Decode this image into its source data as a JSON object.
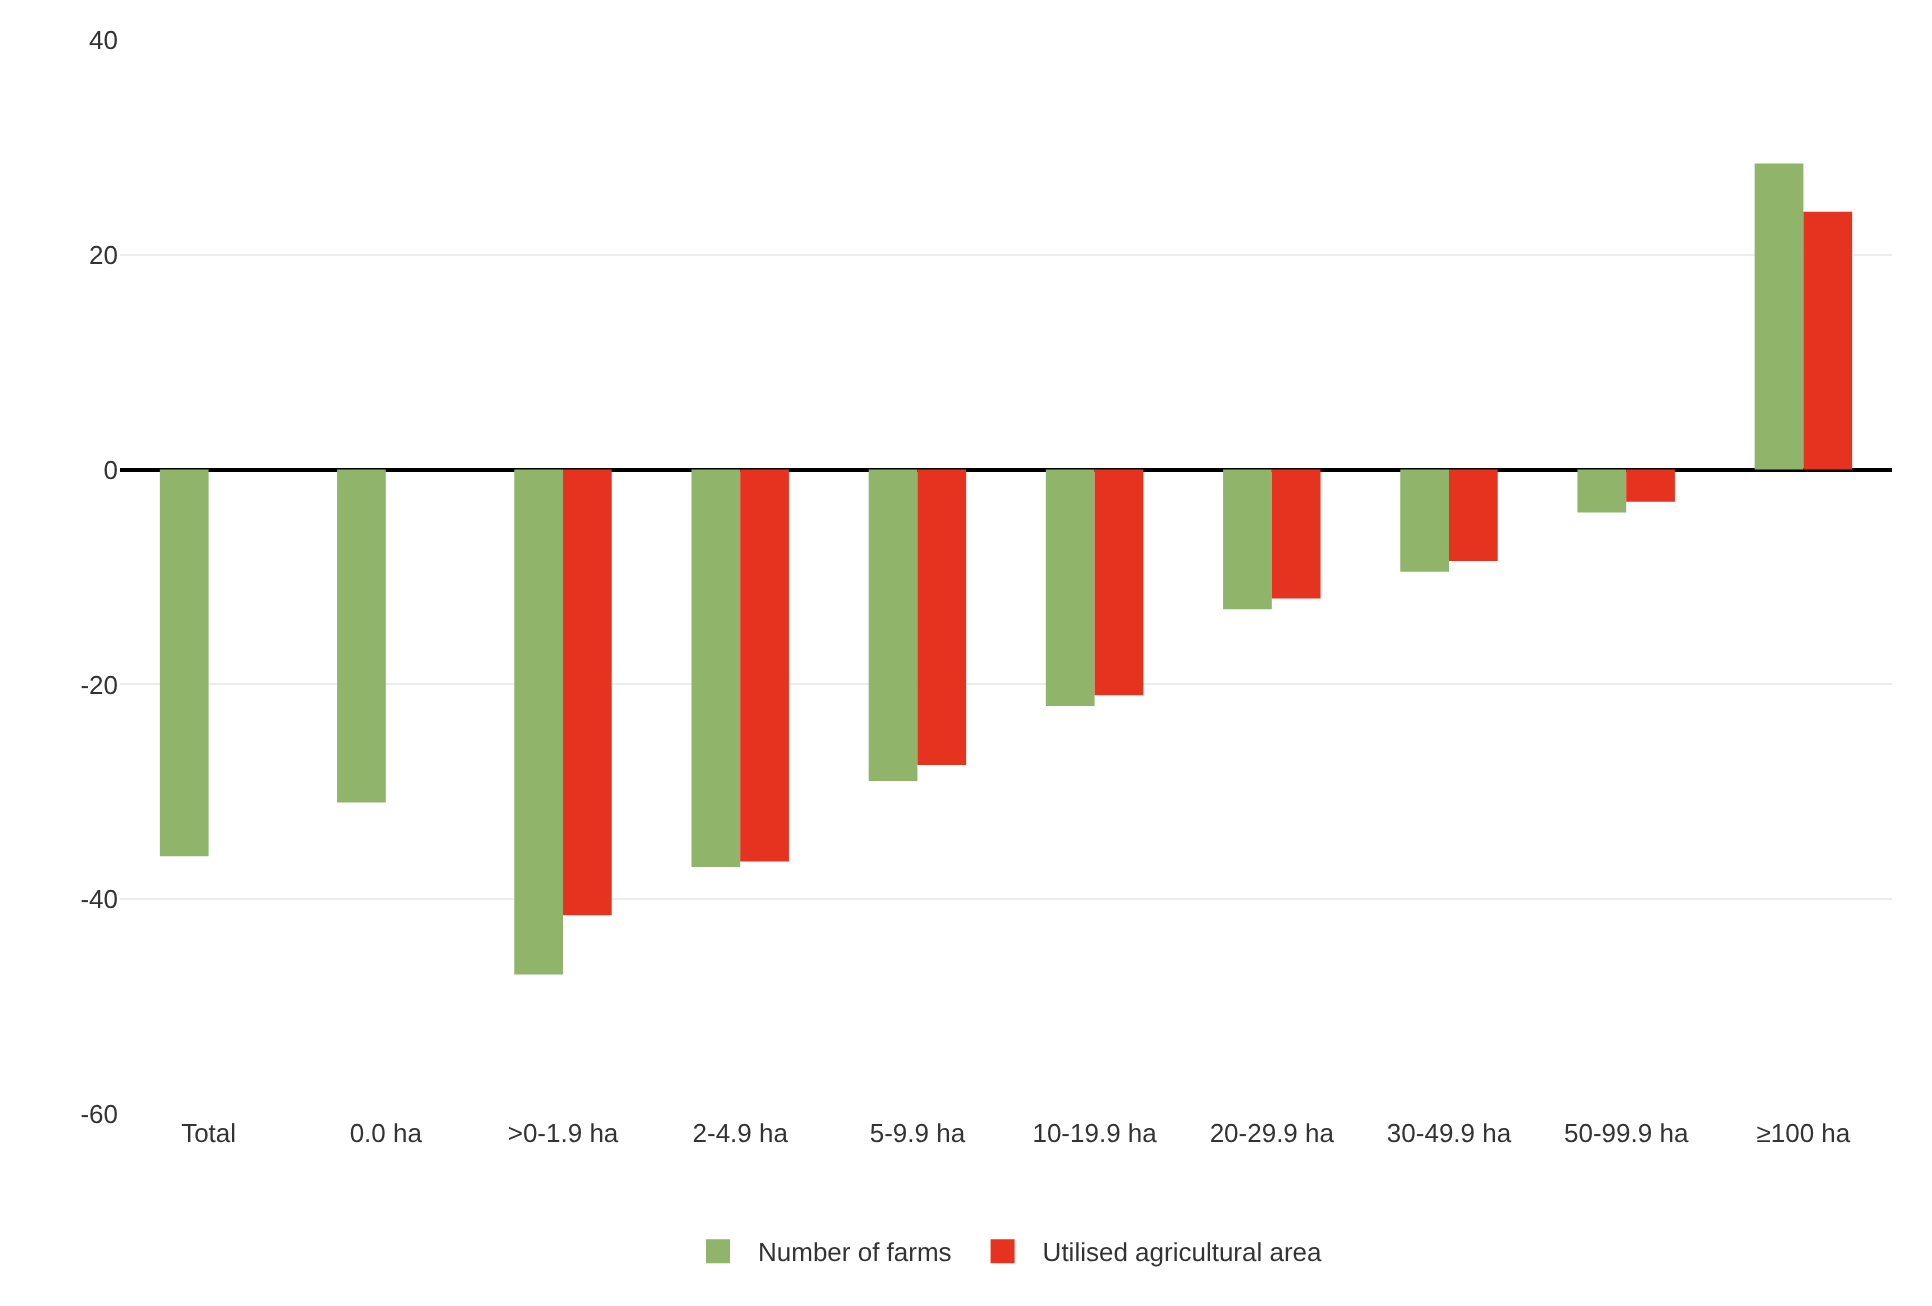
{
  "chart_data": {
    "type": "bar",
    "categories": [
      "Total",
      "0.0 ha",
      ">0-1.9 ha",
      "2-4.9 ha",
      "5-9.9 ha",
      "10-19.9 ha",
      "20-29.9 ha",
      "30-49.9 ha",
      "50-99.9 ha",
      "≥100 ha"
    ],
    "series": [
      {
        "name": "Number of farms",
        "color": "#8fb46a",
        "values": [
          -36,
          -31,
          -47,
          -37,
          -29,
          -22,
          -13,
          -9.5,
          -4,
          28.5
        ]
      },
      {
        "name": "Utilised agricultural area",
        "color": "#e5331f",
        "values": [
          null,
          null,
          -41.5,
          -36.5,
          -27.5,
          -21,
          -12,
          -8.5,
          -3,
          24
        ]
      }
    ],
    "ylim": [
      -60,
      40
    ],
    "yticks": [
      -60,
      -40,
      -20,
      0,
      20,
      40
    ],
    "grid": "y",
    "legend": "bottom"
  }
}
